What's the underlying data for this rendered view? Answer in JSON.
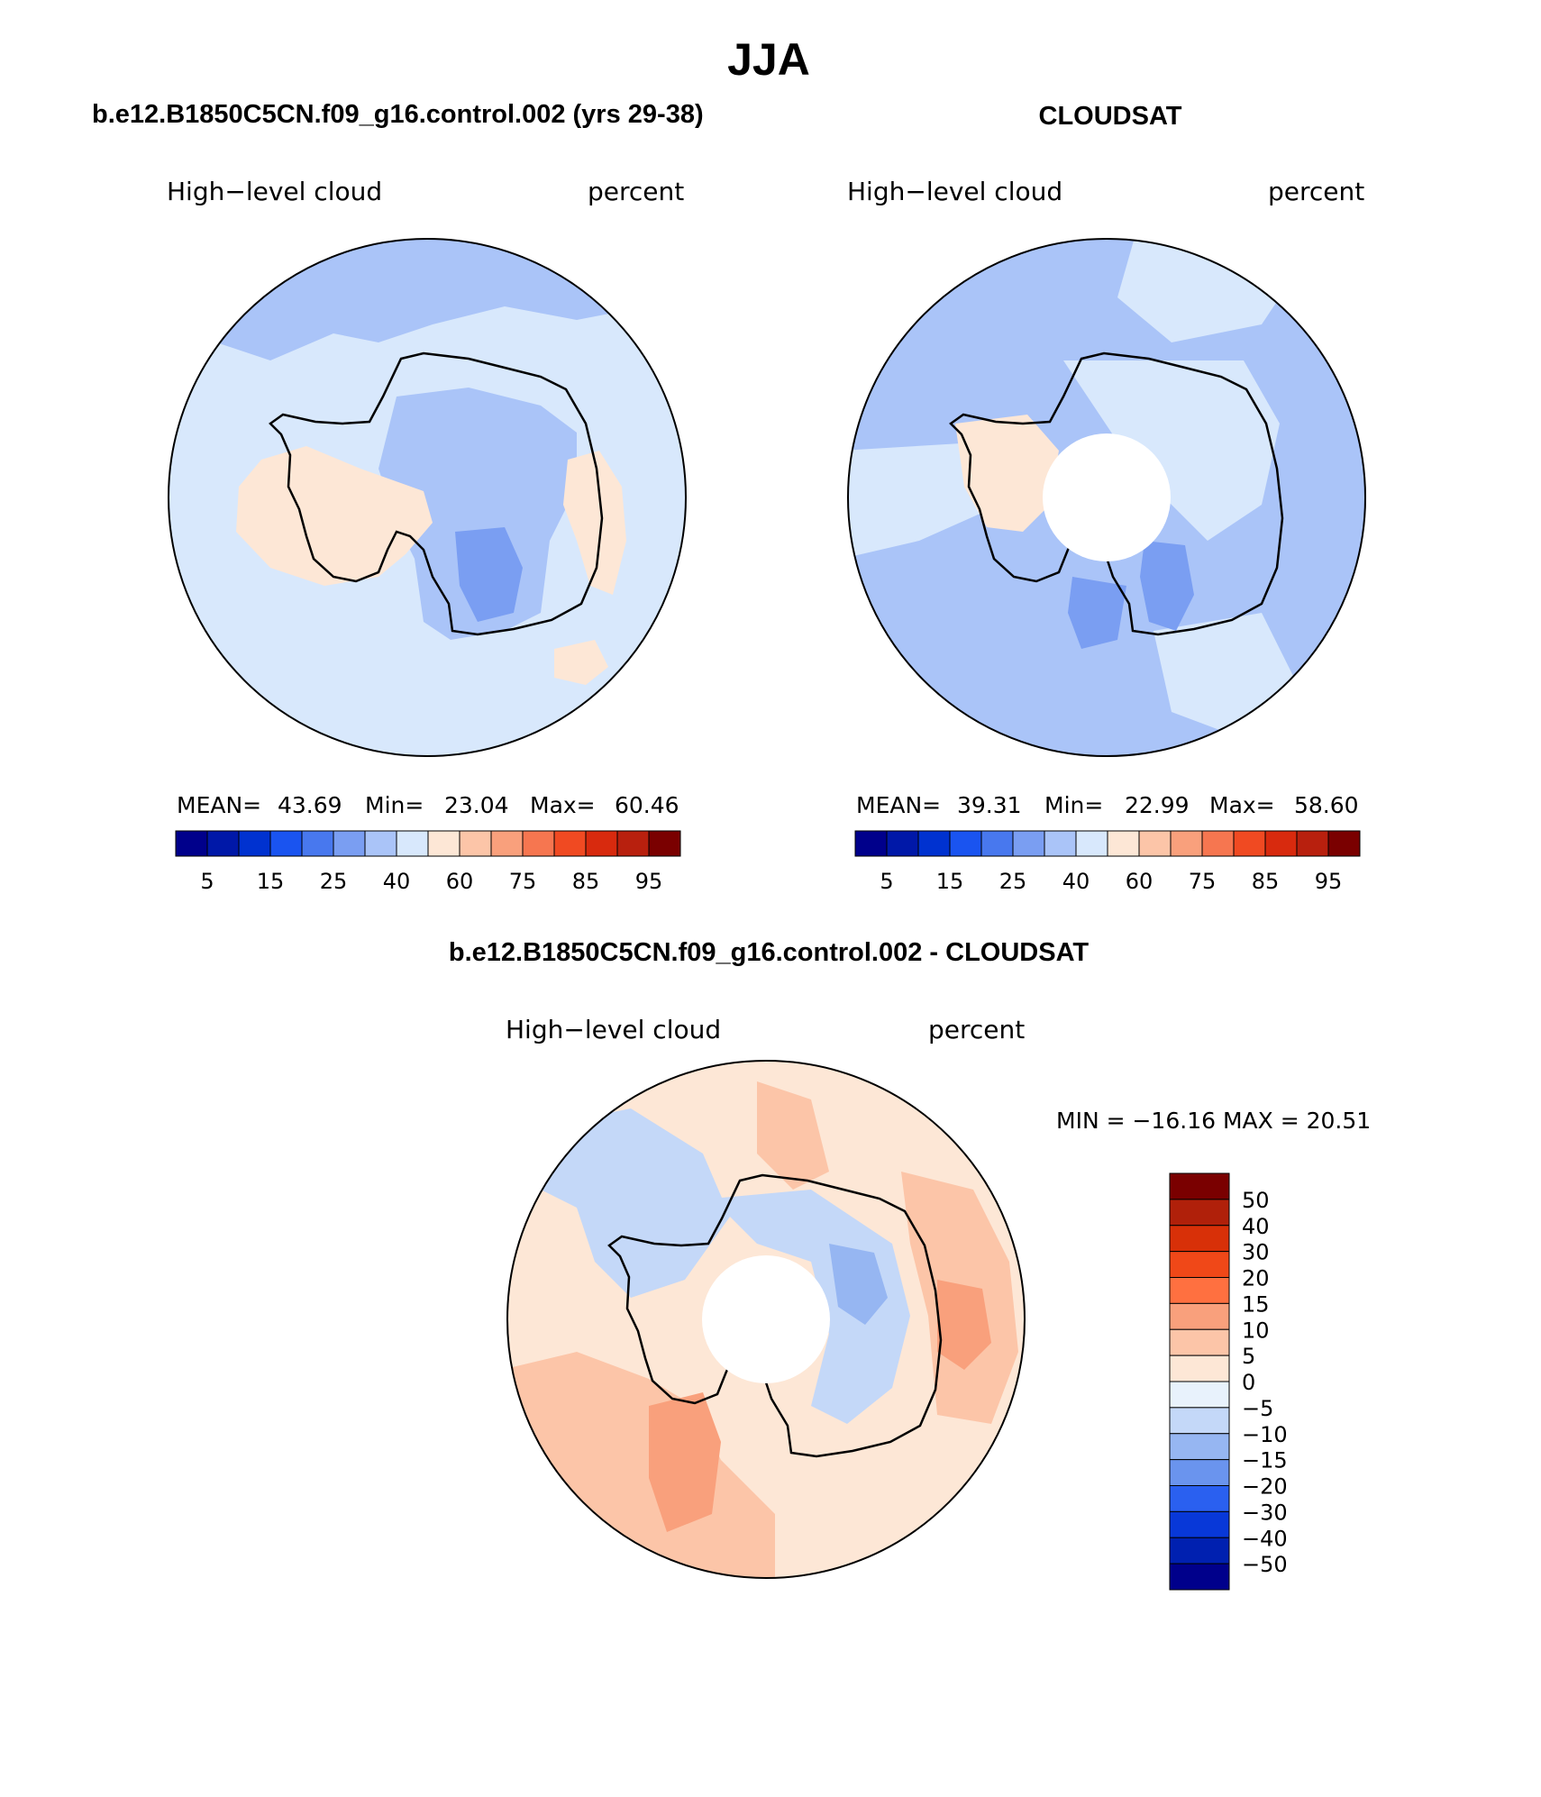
{
  "figure": {
    "title": "JJA",
    "diff_title": "b.e12.B1850C5CN.f09_g16.control.002 - CLOUDSAT"
  },
  "panels": [
    {
      "heading": "b.e12.B1850C5CN.f09_g16.control.002 (yrs 29-38)",
      "variable": "High−level cloud",
      "units": "percent",
      "stats": {
        "mean_label": "MEAN=",
        "mean": "43.69",
        "min_label": "Min=",
        "min": "23.04",
        "max_label": "Max=",
        "max": "60.46"
      }
    },
    {
      "heading": "CLOUDSAT",
      "variable": "High−level cloud",
      "units": "percent",
      "stats": {
        "mean_label": "MEAN=",
        "mean": "39.31",
        "min_label": "Min=",
        "min": "22.99",
        "max_label": "Max=",
        "max": "58.60"
      }
    },
    {
      "variable": "High−level cloud",
      "units": "percent",
      "stats_text": "MIN = −16.16 MAX =   20.51"
    }
  ],
  "abs_colorbar": {
    "colors": [
      "#00008b",
      "#0018a8",
      "#0032d0",
      "#1a54f0",
      "#4878ee",
      "#7a9ef2",
      "#aac4f8",
      "#d8e8fc",
      "#fde7d6",
      "#fcc5a8",
      "#f9a07c",
      "#f67650",
      "#f04a22",
      "#d82a0e",
      "#b8200e",
      "#7a0000"
    ],
    "ticks": [
      "5",
      "15",
      "25",
      "40",
      "60",
      "75",
      "85",
      "95"
    ]
  },
  "diff_colorbar": {
    "colors": [
      "#7a0000",
      "#b0200a",
      "#d83008",
      "#f04818",
      "#ff7040",
      "#f9a07c",
      "#fcc5a8",
      "#fde7d6",
      "#e8f2fc",
      "#c4d8f8",
      "#96b6f2",
      "#6a94ee",
      "#2a60f0",
      "#0838d8",
      "#0020b0",
      "#00008b"
    ],
    "ticks": [
      "50",
      "40",
      "30",
      "20",
      "15",
      "10",
      "5",
      "0",
      "−5",
      "−10",
      "−15",
      "−20",
      "−30",
      "−40",
      "−50"
    ]
  }
}
